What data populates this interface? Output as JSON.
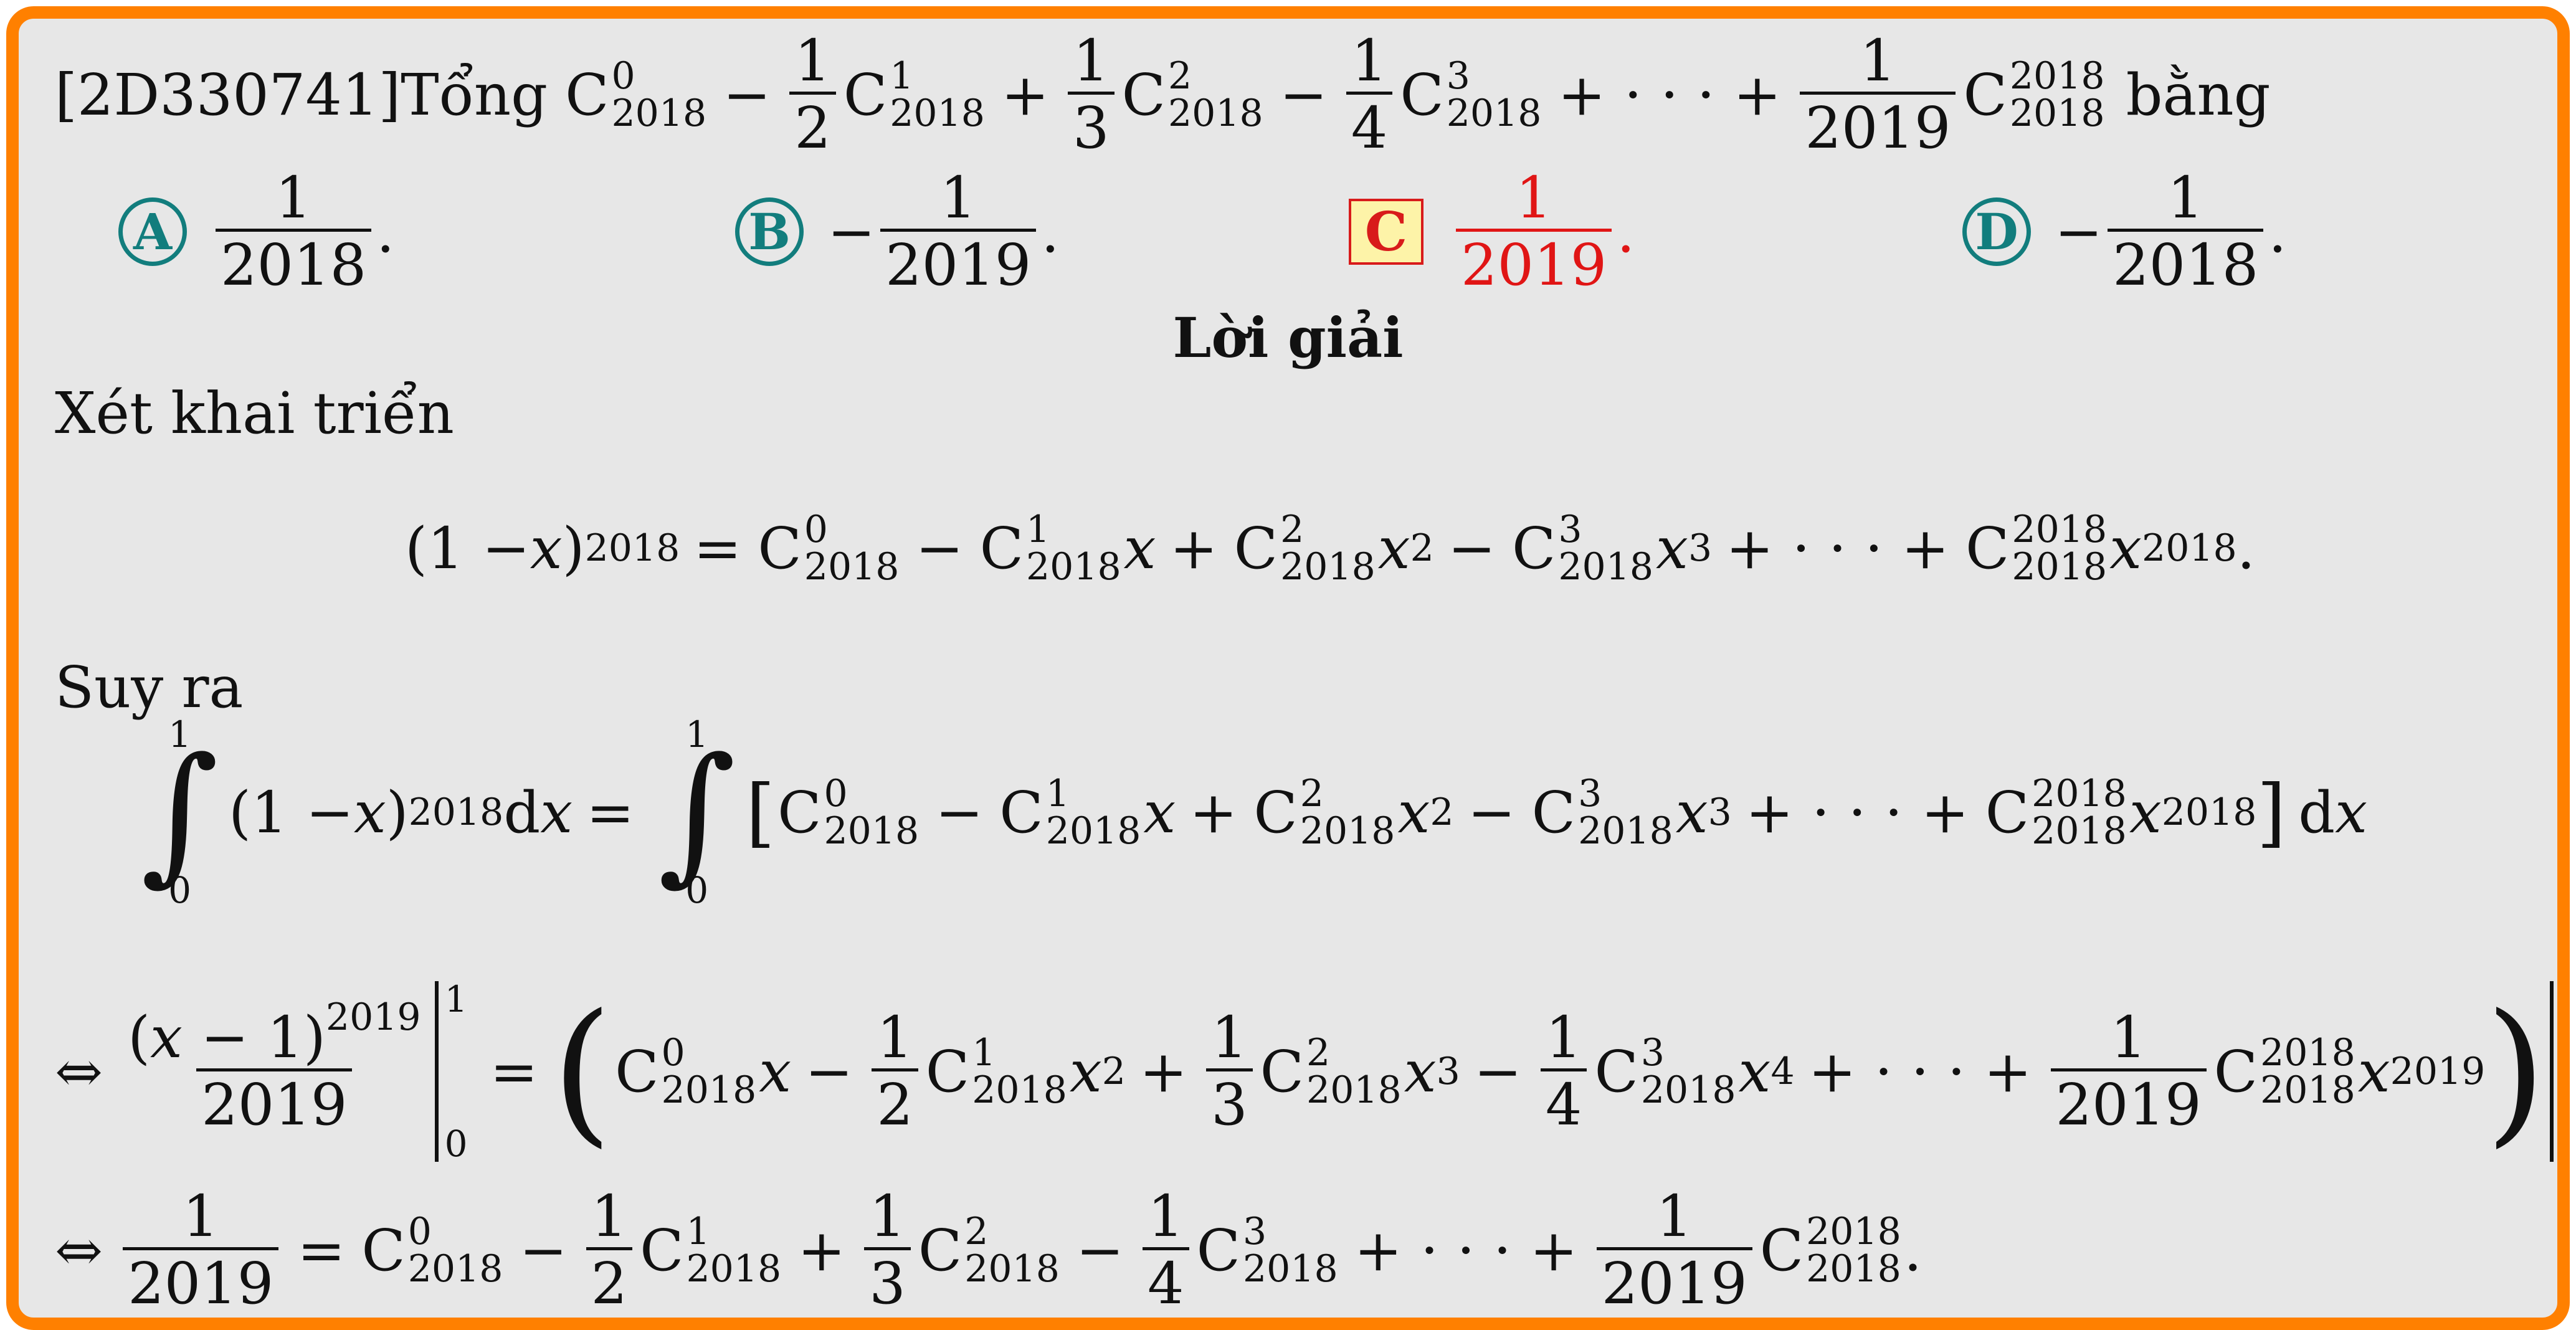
{
  "problem": {
    "code": "[2D330741]",
    "lead": "Tổng",
    "trail": "bằng",
    "n": "2018",
    "last_den": "2019"
  },
  "choices": [
    {
      "letter": "A",
      "sign": "",
      "value": "2018"
    },
    {
      "letter": "B",
      "sign": "−",
      "value": "2019"
    },
    {
      "letter": "C",
      "sign": "",
      "value": "2019"
    },
    {
      "letter": "D",
      "sign": "−",
      "value": "2018"
    }
  ],
  "correct_choice": "C",
  "solution": {
    "heading": "Lời giải",
    "text1": "Xét khai triển",
    "text2": "Suy ra",
    "equiv": "⇔"
  },
  "colors": {
    "frame": "#ff8000",
    "background": "#e7e7e7",
    "choice_teal": "#127d7d",
    "correct_red": "#e01515",
    "correct_box_fill": "#fdf3a8"
  }
}
